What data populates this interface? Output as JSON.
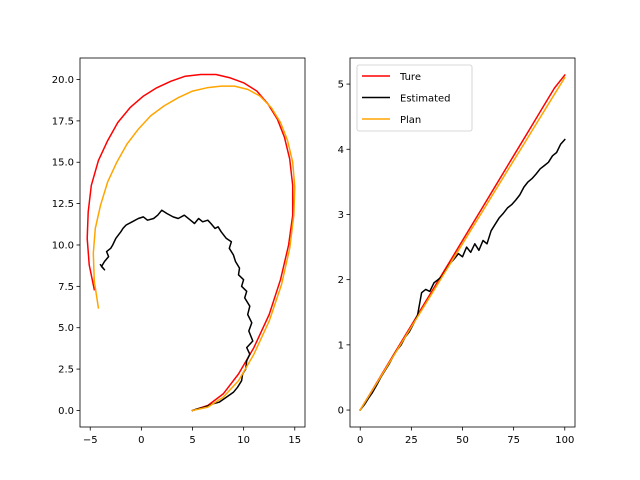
{
  "chart_data": [
    {
      "type": "line",
      "title": "",
      "xlabel": "",
      "ylabel": "",
      "xlim": [
        -6.0,
        16.0
      ],
      "ylim": [
        -1.0,
        21.3
      ],
      "xticks": [
        -5,
        0,
        5,
        10,
        15
      ],
      "xtick_labels": [
        "−5",
        "0",
        "5",
        "10",
        "15"
      ],
      "yticks": [
        0.0,
        2.5,
        5.0,
        7.5,
        10.0,
        12.5,
        15.0,
        17.5,
        20.0
      ],
      "ytick_labels": [
        "0.0",
        "2.5",
        "5.0",
        "7.5",
        "10.0",
        "12.5",
        "15.0",
        "17.5",
        "20.0"
      ],
      "grid": false,
      "series": [
        {
          "color": "#ff0000",
          "x": [
            5.0,
            6.5,
            8.0,
            9.5,
            11.0,
            12.5,
            13.6,
            14.4,
            14.8,
            14.8,
            14.5,
            14.0,
            13.3,
            12.4,
            11.3,
            10.0,
            8.7,
            7.3,
            5.8,
            4.3,
            2.9,
            1.5,
            0.2,
            -1.1,
            -2.3,
            -3.3,
            -4.2,
            -4.9,
            -5.2,
            -5.3,
            -5.1,
            -4.6
          ],
          "y": [
            0.0,
            0.3,
            1.0,
            2.2,
            3.8,
            5.8,
            7.9,
            10.0,
            11.8,
            13.6,
            15.2,
            16.5,
            17.6,
            18.5,
            19.3,
            19.8,
            20.1,
            20.3,
            20.3,
            20.2,
            19.9,
            19.5,
            19.0,
            18.3,
            17.4,
            16.3,
            15.1,
            13.6,
            12.0,
            10.4,
            8.8,
            7.3
          ]
        },
        {
          "color": "#000000",
          "x": [
            5.0,
            5.5,
            6.2,
            7.0,
            7.6,
            8.3,
            9.0,
            9.4,
            9.8,
            9.9,
            10.2,
            10.3,
            10.6,
            10.3,
            10.9,
            10.5,
            10.8,
            10.4,
            10.6,
            10.1,
            10.3,
            9.8,
            10.0,
            9.5,
            9.6,
            9.2,
            9.0,
            8.6,
            8.8,
            8.3,
            7.8,
            7.5,
            7.2,
            6.8,
            6.5,
            6.0,
            5.6,
            5.2,
            4.8,
            4.2,
            3.6,
            3.1,
            2.5,
            2.0,
            1.6,
            1.2,
            0.6,
            0.2,
            -0.3,
            -0.9,
            -1.5,
            -1.8,
            -2.0,
            -2.5,
            -2.8,
            -3.0,
            -3.4,
            -3.2,
            -3.6,
            -3.9,
            -3.6,
            -4.0
          ],
          "y": [
            0.0,
            0.1,
            0.2,
            0.4,
            0.5,
            0.8,
            1.1,
            1.4,
            1.8,
            2.2,
            2.5,
            3.0,
            3.4,
            3.8,
            4.2,
            4.8,
            5.3,
            5.8,
            6.3,
            6.8,
            7.2,
            7.5,
            7.9,
            8.2,
            8.6,
            9.0,
            9.4,
            9.8,
            10.2,
            10.4,
            10.8,
            11.1,
            11.0,
            11.3,
            11.5,
            11.4,
            11.6,
            11.3,
            11.5,
            11.8,
            11.6,
            11.7,
            11.9,
            12.1,
            11.8,
            11.6,
            11.5,
            11.7,
            11.6,
            11.4,
            11.2,
            11.0,
            10.8,
            10.4,
            10.0,
            9.8,
            9.6,
            9.3,
            9.0,
            8.7,
            8.5,
            8.8
          ]
        },
        {
          "color": "#ffa500",
          "x": [
            5.0,
            6.5,
            8.0,
            9.5,
            11.0,
            12.5,
            13.7,
            14.5,
            14.9,
            15.0,
            14.8,
            14.3,
            13.6,
            12.7,
            11.6,
            10.4,
            9.1,
            7.8,
            6.4,
            5.0,
            3.6,
            2.2,
            0.9,
            -0.3,
            -1.4,
            -2.4,
            -3.3,
            -4.0,
            -4.5,
            -4.7,
            -4.6,
            -4.2
          ],
          "y": [
            0.0,
            0.2,
            0.8,
            1.8,
            3.4,
            5.4,
            7.6,
            9.8,
            11.8,
            13.5,
            15.0,
            16.3,
            17.4,
            18.3,
            19.0,
            19.4,
            19.6,
            19.6,
            19.5,
            19.3,
            18.9,
            18.4,
            17.8,
            17.0,
            16.1,
            15.0,
            13.8,
            12.4,
            11.0,
            9.5,
            7.8,
            6.2
          ]
        }
      ]
    },
    {
      "type": "line",
      "title": "",
      "xlabel": "",
      "ylabel": "",
      "xlim": [
        -5.0,
        105.0
      ],
      "ylim": [
        -0.26,
        5.4
      ],
      "xticks": [
        0,
        25,
        50,
        75,
        100
      ],
      "xtick_labels": [
        "0",
        "25",
        "50",
        "75",
        "100"
      ],
      "yticks": [
        0,
        1,
        2,
        3,
        4,
        5
      ],
      "ytick_labels": [
        "0",
        "1",
        "2",
        "3",
        "4",
        "5"
      ],
      "grid": false,
      "legend": {
        "position": "top-left",
        "labels": [
          "Ture",
          "Estimated",
          "Plan"
        ]
      },
      "series": [
        {
          "name": "Ture",
          "color": "#ff0000",
          "x": [
            0,
            5,
            10,
            15,
            20,
            25,
            30,
            35,
            40,
            45,
            50,
            55,
            60,
            65,
            70,
            75,
            80,
            85,
            90,
            95,
            100
          ],
          "y": [
            0.0,
            0.26,
            0.52,
            0.78,
            1.04,
            1.3,
            1.56,
            1.82,
            2.08,
            2.34,
            2.6,
            2.86,
            3.12,
            3.38,
            3.64,
            3.9,
            4.16,
            4.42,
            4.68,
            4.94,
            5.14
          ]
        },
        {
          "name": "Estimated",
          "color": "#000000",
          "x": [
            0,
            2,
            4,
            6,
            8,
            10,
            12,
            14,
            16,
            18,
            20,
            22,
            24,
            26,
            28,
            30,
            32,
            34,
            36,
            38,
            40,
            42,
            44,
            46,
            48,
            50,
            52,
            54,
            56,
            58,
            60,
            62,
            64,
            66,
            68,
            70,
            72,
            74,
            76,
            78,
            80,
            82,
            84,
            86,
            88,
            90,
            92,
            94,
            96,
            98,
            100
          ],
          "y": [
            0.0,
            0.08,
            0.18,
            0.27,
            0.38,
            0.5,
            0.6,
            0.7,
            0.82,
            0.92,
            1.0,
            1.12,
            1.2,
            1.32,
            1.45,
            1.8,
            1.85,
            1.82,
            1.95,
            2.0,
            2.05,
            2.15,
            2.25,
            2.32,
            2.4,
            2.35,
            2.5,
            2.42,
            2.55,
            2.45,
            2.6,
            2.55,
            2.75,
            2.85,
            2.95,
            3.02,
            3.1,
            3.15,
            3.22,
            3.3,
            3.42,
            3.5,
            3.55,
            3.62,
            3.7,
            3.75,
            3.8,
            3.9,
            3.95,
            4.08,
            4.15
          ]
        },
        {
          "name": "Plan",
          "color": "#ffa500",
          "x": [
            0,
            5,
            10,
            15,
            20,
            25,
            30,
            35,
            40,
            45,
            50,
            55,
            60,
            65,
            70,
            75,
            80,
            85,
            90,
            95,
            100
          ],
          "y": [
            0.0,
            0.255,
            0.51,
            0.765,
            1.02,
            1.275,
            1.53,
            1.785,
            2.04,
            2.295,
            2.55,
            2.805,
            3.06,
            3.315,
            3.57,
            3.825,
            4.08,
            4.335,
            4.59,
            4.845,
            5.1
          ]
        }
      ]
    }
  ]
}
